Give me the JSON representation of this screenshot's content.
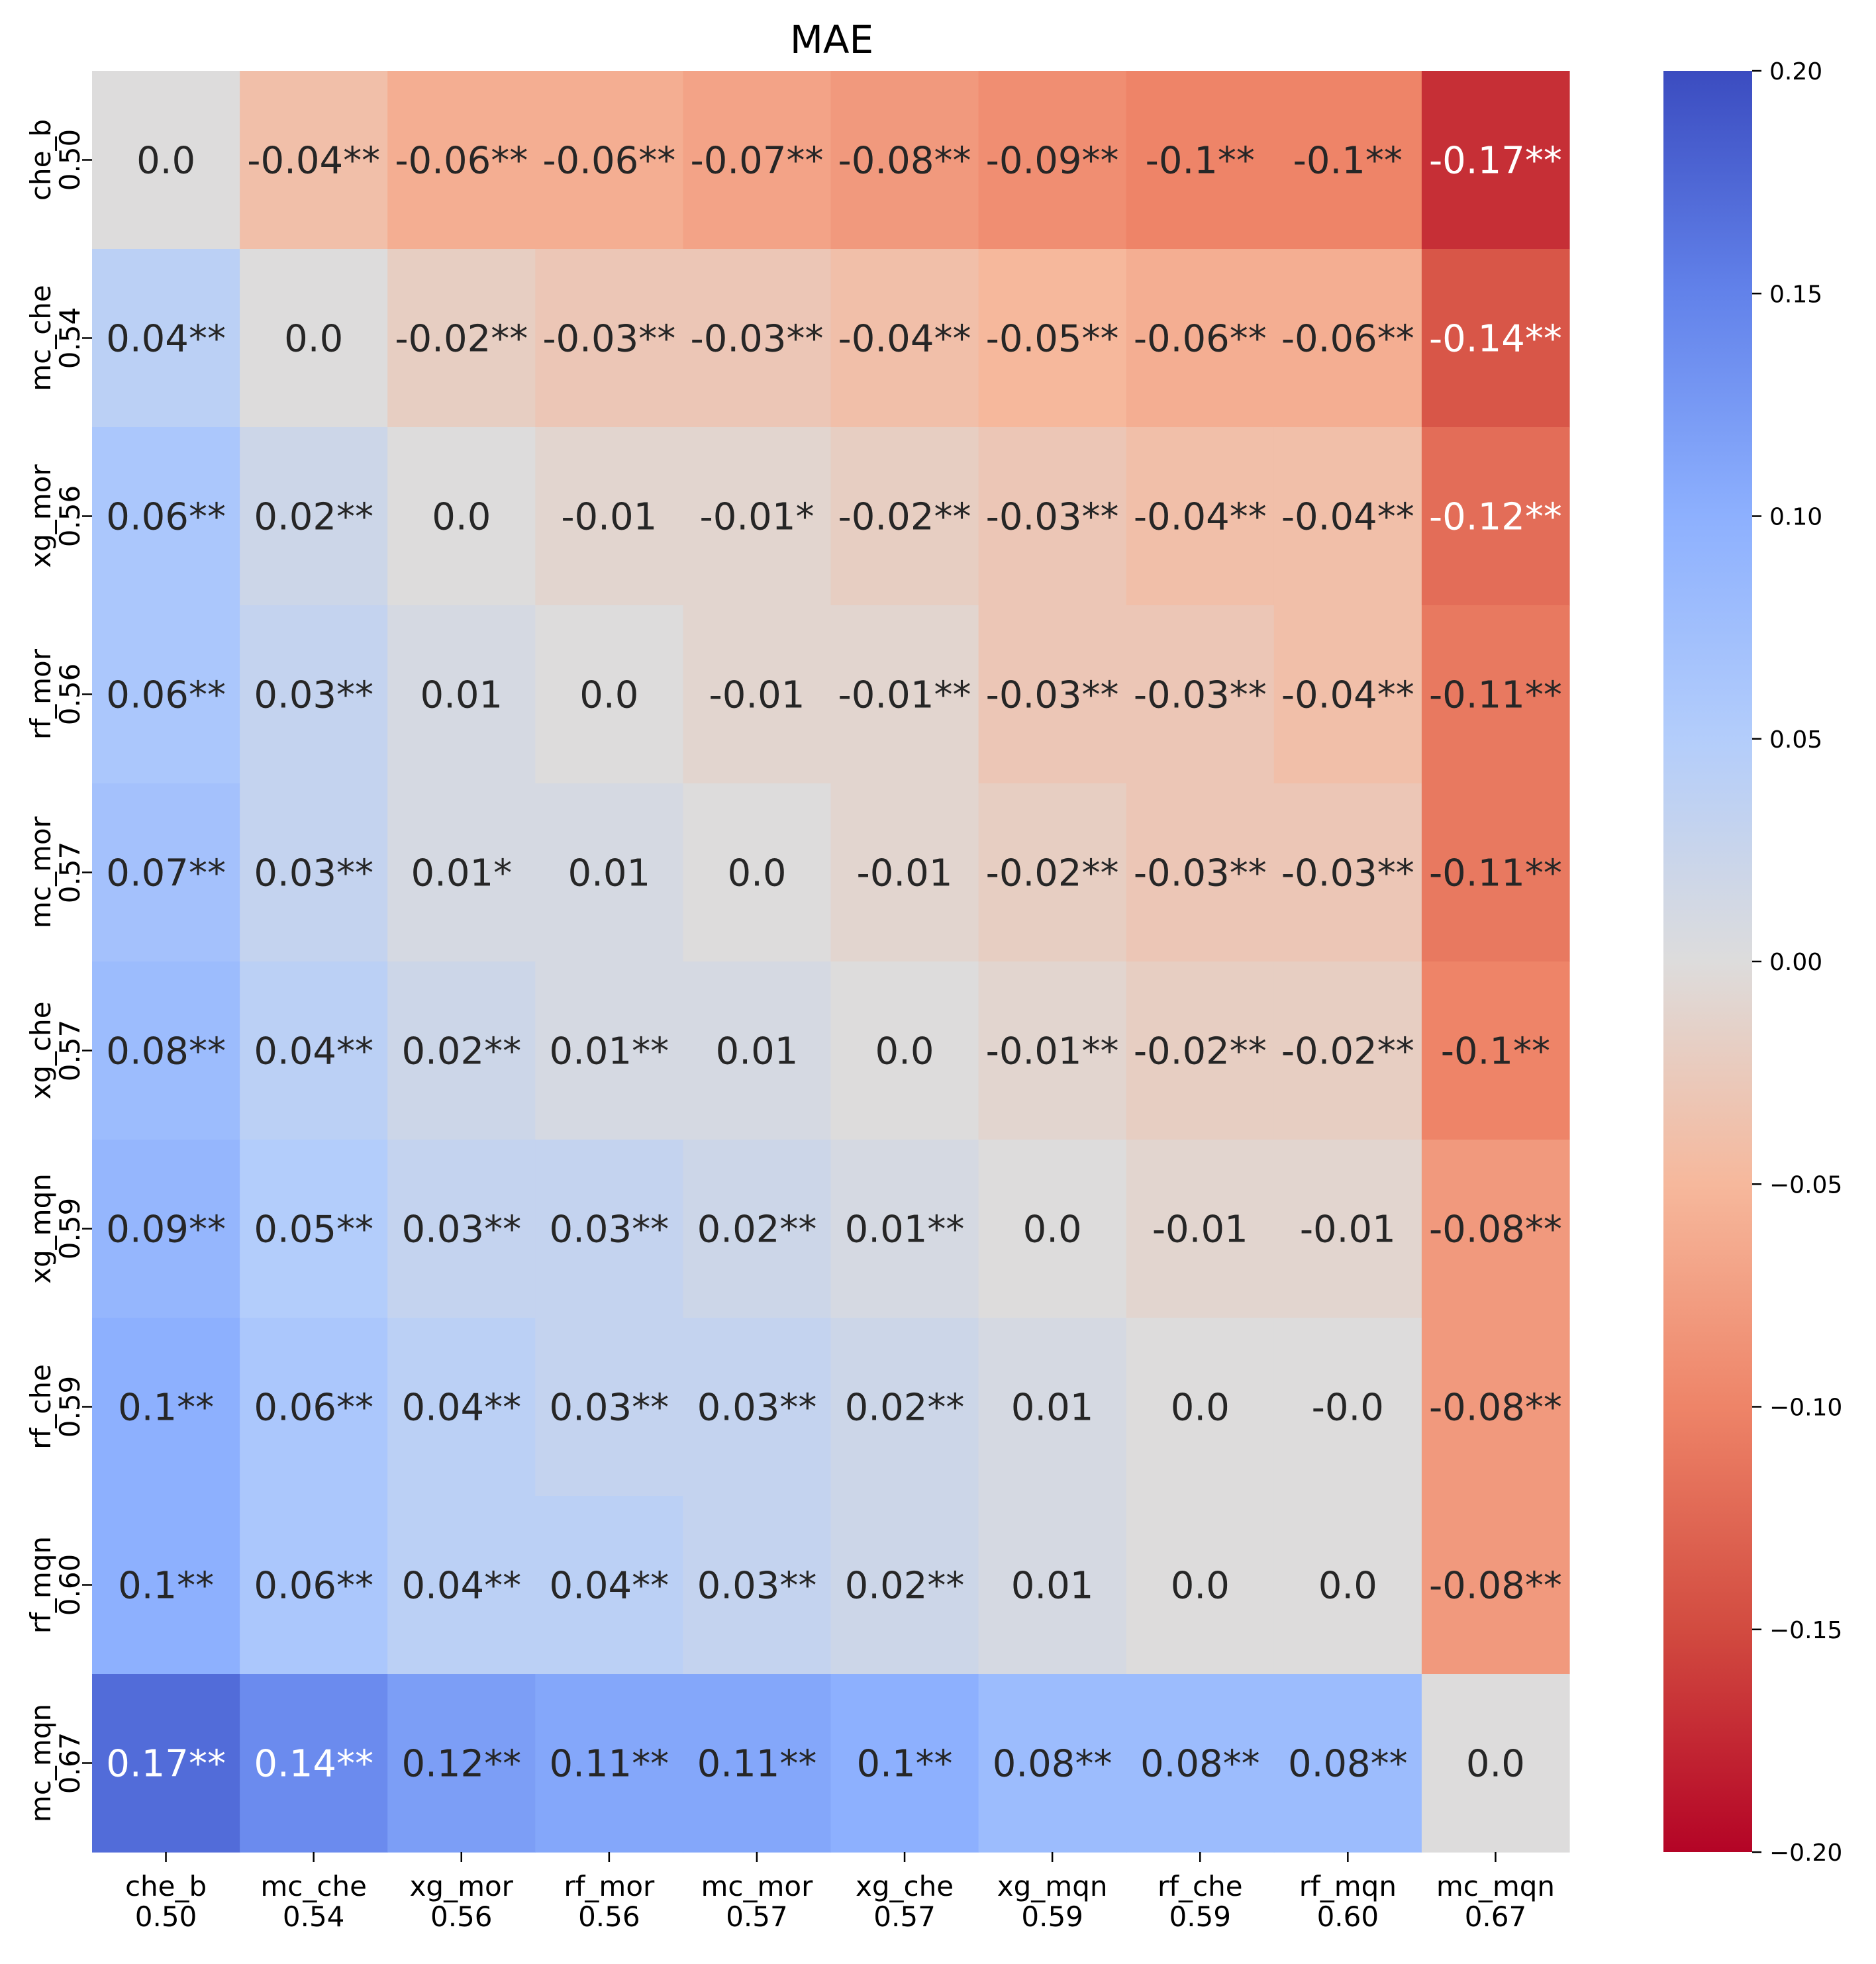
{
  "chart_data": {
    "type": "heatmap",
    "title": "MAE",
    "rows": [
      {
        "name": "che_b",
        "score": "0.50"
      },
      {
        "name": "mc_che",
        "score": "0.54"
      },
      {
        "name": "xg_mor",
        "score": "0.56"
      },
      {
        "name": "rf_mor",
        "score": "0.56"
      },
      {
        "name": "mc_mor",
        "score": "0.57"
      },
      {
        "name": "xg_che",
        "score": "0.57"
      },
      {
        "name": "xg_mqn",
        "score": "0.59"
      },
      {
        "name": "rf_che",
        "score": "0.59"
      },
      {
        "name": "rf_mqn",
        "score": "0.60"
      },
      {
        "name": "mc_mqn",
        "score": "0.67"
      }
    ],
    "columns": [
      {
        "name": "che_b",
        "score": "0.50"
      },
      {
        "name": "mc_che",
        "score": "0.54"
      },
      {
        "name": "xg_mor",
        "score": "0.56"
      },
      {
        "name": "rf_mor",
        "score": "0.56"
      },
      {
        "name": "mc_mor",
        "score": "0.57"
      },
      {
        "name": "xg_che",
        "score": "0.57"
      },
      {
        "name": "xg_mqn",
        "score": "0.59"
      },
      {
        "name": "rf_che",
        "score": "0.59"
      },
      {
        "name": "rf_mqn",
        "score": "0.60"
      },
      {
        "name": "mc_mqn",
        "score": "0.67"
      }
    ],
    "values": [
      [
        0.0,
        -0.04,
        -0.06,
        -0.06,
        -0.07,
        -0.08,
        -0.09,
        -0.1,
        -0.1,
        -0.17
      ],
      [
        0.04,
        0.0,
        -0.02,
        -0.03,
        -0.03,
        -0.04,
        -0.05,
        -0.06,
        -0.06,
        -0.14
      ],
      [
        0.06,
        0.02,
        0.0,
        -0.01,
        -0.01,
        -0.02,
        -0.03,
        -0.04,
        -0.04,
        -0.12
      ],
      [
        0.06,
        0.03,
        0.01,
        0.0,
        -0.01,
        -0.01,
        -0.03,
        -0.03,
        -0.04,
        -0.11
      ],
      [
        0.07,
        0.03,
        0.01,
        0.01,
        0.0,
        -0.01,
        -0.02,
        -0.03,
        -0.03,
        -0.11
      ],
      [
        0.08,
        0.04,
        0.02,
        0.01,
        0.01,
        0.0,
        -0.01,
        -0.02,
        -0.02,
        -0.1
      ],
      [
        0.09,
        0.05,
        0.03,
        0.03,
        0.02,
        0.01,
        0.0,
        -0.01,
        -0.01,
        -0.08
      ],
      [
        0.1,
        0.06,
        0.04,
        0.03,
        0.03,
        0.02,
        0.01,
        0.0,
        -0.0,
        -0.08
      ],
      [
        0.1,
        0.06,
        0.04,
        0.04,
        0.03,
        0.02,
        0.01,
        0.0,
        0.0,
        -0.08
      ],
      [
        0.17,
        0.14,
        0.12,
        0.11,
        0.11,
        0.1,
        0.08,
        0.08,
        0.08,
        0.0
      ]
    ],
    "annotations": [
      [
        "0.0",
        "-0.04**",
        "-0.06**",
        "-0.06**",
        "-0.07**",
        "-0.08**",
        "-0.09**",
        "-0.1**",
        "-0.1**",
        "-0.17**"
      ],
      [
        "0.04**",
        "0.0",
        "-0.02**",
        "-0.03**",
        "-0.03**",
        "-0.04**",
        "-0.05**",
        "-0.06**",
        "-0.06**",
        "-0.14**"
      ],
      [
        "0.06**",
        "0.02**",
        "0.0",
        "-0.01",
        "-0.01*",
        "-0.02**",
        "-0.03**",
        "-0.04**",
        "-0.04**",
        "-0.12**"
      ],
      [
        "0.06**",
        "0.03**",
        "0.01",
        "0.0",
        "-0.01",
        "-0.01**",
        "-0.03**",
        "-0.03**",
        "-0.04**",
        "-0.11**"
      ],
      [
        "0.07**",
        "0.03**",
        "0.01*",
        "0.01",
        "0.0",
        "-0.01",
        "-0.02**",
        "-0.03**",
        "-0.03**",
        "-0.11**"
      ],
      [
        "0.08**",
        "0.04**",
        "0.02**",
        "0.01**",
        "0.01",
        "0.0",
        "-0.01**",
        "-0.02**",
        "-0.02**",
        "-0.1**"
      ],
      [
        "0.09**",
        "0.05**",
        "0.03**",
        "0.03**",
        "0.02**",
        "0.01**",
        "0.0",
        "-0.01",
        "-0.01",
        "-0.08**"
      ],
      [
        "0.1**",
        "0.06**",
        "0.04**",
        "0.03**",
        "0.03**",
        "0.02**",
        "0.01",
        "0.0",
        "-0.0",
        "-0.08**"
      ],
      [
        "0.1**",
        "0.06**",
        "0.04**",
        "0.04**",
        "0.03**",
        "0.02**",
        "0.01",
        "0.0",
        "0.0",
        "-0.08**"
      ],
      [
        "0.17**",
        "0.14**",
        "0.12**",
        "0.11**",
        "0.11**",
        "0.1**",
        "0.08**",
        "0.08**",
        "0.08**",
        "0.0"
      ]
    ],
    "colorbar": {
      "min": -0.2,
      "max": 0.2,
      "colormap": "coolwarm_r",
      "ticks": [
        0.2,
        0.15,
        0.1,
        0.05,
        0.0,
        -0.05,
        -0.1,
        -0.15,
        -0.2
      ],
      "tick_labels": [
        "0.20",
        "0.15",
        "0.10",
        "0.05",
        "0.00",
        "−0.05",
        "−0.10",
        "−0.15",
        "−0.20"
      ]
    },
    "colors": {
      "low": "#b40426",
      "mid": "#dddcdc",
      "high": "#3b4cc0"
    }
  }
}
